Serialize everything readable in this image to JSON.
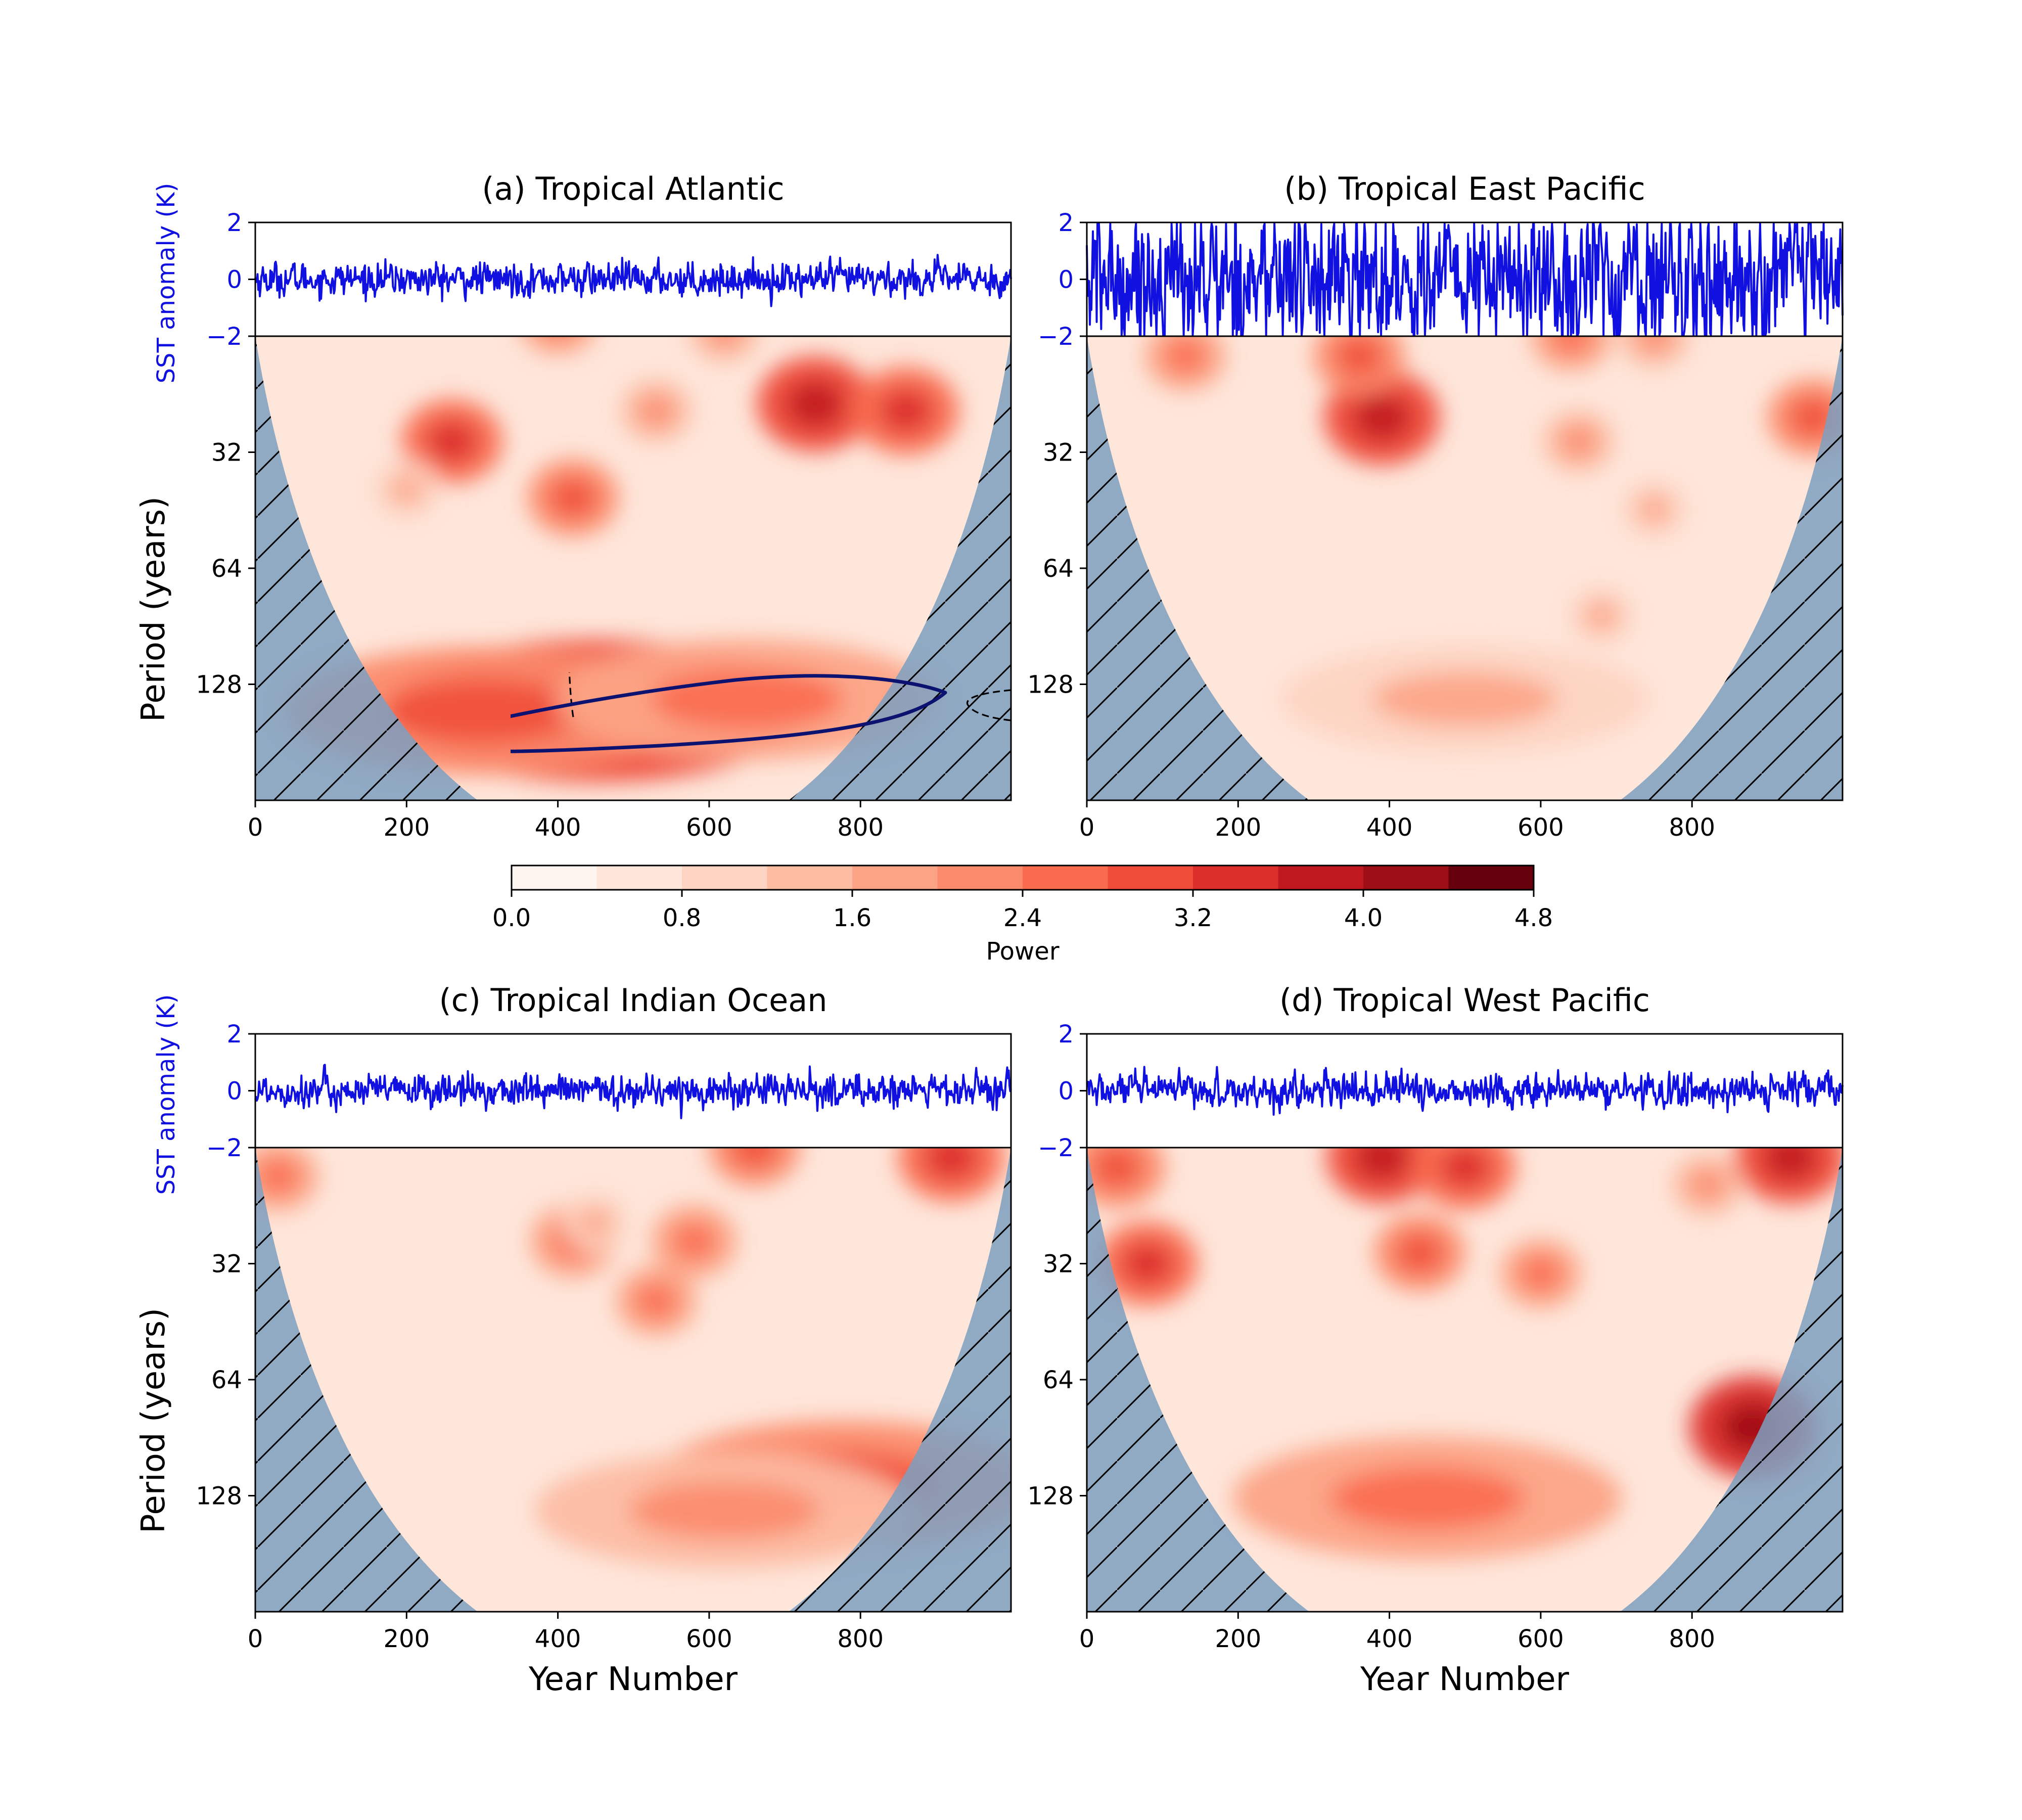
{
  "figure": {
    "cmap": [
      "#fff5f0",
      "#fee6da",
      "#fdd4c2",
      "#fcbca2",
      "#fca385",
      "#fb8a6a",
      "#f96b4f",
      "#ef4c3a",
      "#dc2e2b",
      "#c0181f",
      "#9e0e16",
      "#67000d"
    ],
    "line_color": "#1010e0",
    "contour_color": "#0b1270",
    "coi_color": "#7c9fc0",
    "colorbar": {
      "label": "Power",
      "ticks": [
        "0.0",
        "0.8",
        "1.6",
        "2.4",
        "3.2",
        "4.0",
        "4.8"
      ],
      "levels": 12,
      "min": 0,
      "max": 4.8
    },
    "axis_labels": {
      "sst_ylabel": "SST anomaly (K)",
      "period_ylabel": "Period (years)",
      "xlabel": "Year Number"
    },
    "sst_ticks": [
      "2",
      "0",
      "−2"
    ],
    "period_ticks": [
      "32",
      "64",
      "128"
    ],
    "x_ticks": [
      "0",
      "200",
      "400",
      "600",
      "800"
    ]
  },
  "chart_data": [
    {
      "type": "heatmap",
      "title": "(a) Tropical Atlantic",
      "x_range": [
        0,
        999
      ],
      "sst_ylim": [
        -2,
        2
      ],
      "sst_amplitude": 0.3,
      "period_range": [
        16,
        256
      ],
      "log_period": true,
      "power_blobs": [
        {
          "x": 400,
          "period": 14.5,
          "power": 1.6
        },
        {
          "x": 260,
          "period": 30,
          "power": 2.4
        },
        {
          "x": 420,
          "period": 42,
          "power": 2.0
        },
        {
          "x": 530,
          "period": 25,
          "power": 1.2
        },
        {
          "x": 620,
          "period": 15.5,
          "power": 1.2
        },
        {
          "x": 740,
          "period": 24,
          "power": 3.0
        },
        {
          "x": 860,
          "period": 25,
          "power": 2.6
        },
        {
          "x": 450,
          "period": 150,
          "power": 2.8
        },
        {
          "x": 300,
          "period": 150,
          "power": 2.0
        },
        {
          "x": 650,
          "period": 140,
          "power": 1.6
        },
        {
          "x": 200,
          "period": 40,
          "power": 1.0
        }
      ]
    },
    {
      "type": "heatmap",
      "title": "(b) Tropical East Pacific",
      "x_range": [
        0,
        999
      ],
      "sst_ylim": [
        -2,
        2
      ],
      "sst_amplitude": 1.35,
      "period_range": [
        16,
        256
      ],
      "log_period": true,
      "power_blobs": [
        {
          "x": 130,
          "period": 18,
          "power": 1.6
        },
        {
          "x": 390,
          "period": 26,
          "power": 3.0
        },
        {
          "x": 360,
          "period": 18,
          "power": 2.0
        },
        {
          "x": 640,
          "period": 16,
          "power": 1.6
        },
        {
          "x": 750,
          "period": 16,
          "power": 1.2
        },
        {
          "x": 960,
          "period": 26,
          "power": 2.0
        },
        {
          "x": 650,
          "period": 30,
          "power": 1.2
        },
        {
          "x": 750,
          "period": 45,
          "power": 1.0
        },
        {
          "x": 680,
          "period": 85,
          "power": 1.0
        },
        {
          "x": 500,
          "period": 140,
          "power": 1.0
        }
      ]
    },
    {
      "type": "heatmap",
      "title": "(c) Tropical Indian Ocean",
      "x_range": [
        0,
        999
      ],
      "sst_ylim": [
        -2,
        2
      ],
      "sst_amplitude": 0.3,
      "period_range": [
        16,
        256
      ],
      "log_period": true,
      "power_blobs": [
        {
          "x": 30,
          "period": 19,
          "power": 1.6
        },
        {
          "x": 420,
          "period": 28,
          "power": 1.8
        },
        {
          "x": 580,
          "period": 28,
          "power": 1.8
        },
        {
          "x": 530,
          "period": 40,
          "power": 1.6
        },
        {
          "x": 660,
          "period": 16,
          "power": 2.0
        },
        {
          "x": 920,
          "period": 17,
          "power": 2.6
        },
        {
          "x": 780,
          "period": 120,
          "power": 2.0
        },
        {
          "x": 620,
          "period": 140,
          "power": 1.4
        },
        {
          "x": 450,
          "period": 25,
          "power": 1.0
        }
      ]
    },
    {
      "type": "heatmap",
      "title": "(d) Tropical West Pacific",
      "x_range": [
        0,
        999
      ],
      "sst_ylim": [
        -2,
        2
      ],
      "sst_amplitude": 0.3,
      "period_range": [
        16,
        256
      ],
      "log_period": true,
      "power_blobs": [
        {
          "x": 40,
          "period": 18,
          "power": 2.2
        },
        {
          "x": 80,
          "period": 32,
          "power": 2.4
        },
        {
          "x": 390,
          "period": 17,
          "power": 2.8
        },
        {
          "x": 500,
          "period": 18,
          "power": 2.4
        },
        {
          "x": 440,
          "period": 30,
          "power": 2.0
        },
        {
          "x": 600,
          "period": 34,
          "power": 1.6
        },
        {
          "x": 930,
          "period": 17,
          "power": 2.8
        },
        {
          "x": 880,
          "period": 85,
          "power": 3.4
        },
        {
          "x": 450,
          "period": 130,
          "power": 1.8
        },
        {
          "x": 820,
          "period": 20,
          "power": 1.2
        }
      ]
    }
  ]
}
